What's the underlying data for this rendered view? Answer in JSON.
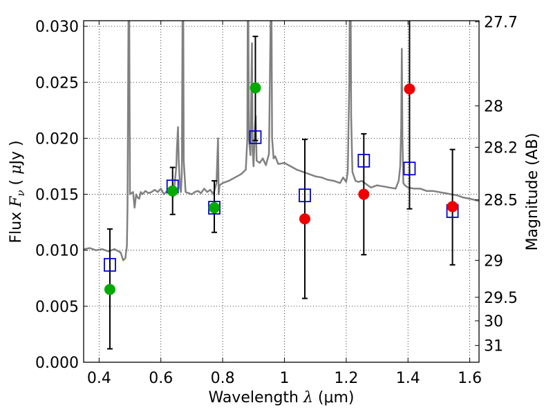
{
  "chart_data": {
    "type": "scatter",
    "xlabel": "Wavelength  λ (μm)",
    "xlabel_parts": {
      "pre": "Wavelength  ",
      "sym": "λ",
      "post": " (μm)"
    },
    "ylabel": "Flux  Fν  ( μJy )",
    "ylabel_parts": {
      "pre": "Flux  ",
      "sym": "F",
      "sub": "ν",
      "mid": "  ( ",
      "mu": "μ",
      "post": "Jy )"
    },
    "y2label": "Magnitude (AB)",
    "xlim": [
      0.35,
      1.63
    ],
    "ylim": [
      0.0,
      0.0305
    ],
    "grid": true,
    "xticks": [
      0.4,
      0.6,
      0.8,
      1.0,
      1.2,
      1.4,
      1.6
    ],
    "xtick_labels": [
      "0.4",
      "0.6",
      "0.8",
      "1",
      "1.2",
      "1.4",
      "1.6"
    ],
    "yticks": [
      0.0,
      0.005,
      0.01,
      0.015,
      0.02,
      0.025,
      0.03
    ],
    "ytick_labels": [
      "0.000",
      "0.005",
      "0.010",
      "0.015",
      "0.020",
      "0.025",
      "0.030"
    ],
    "y2ticks": [
      {
        "label": "27.7",
        "flux": 0.0304
      },
      {
        "label": "28",
        "flux": 0.0229
      },
      {
        "label": "28.2",
        "flux": 0.0192
      },
      {
        "label": "28.5",
        "flux": 0.0145
      },
      {
        "label": "29",
        "flux": 0.0091
      },
      {
        "label": "29.5",
        "flux": 0.0058
      },
      {
        "label": "30",
        "flux": 0.0037
      },
      {
        "label": "31",
        "flux": 0.0015
      }
    ],
    "spectrum": {
      "color": "#808080",
      "points": [
        [
          0.35,
          0.0101
        ],
        [
          0.37,
          0.0102
        ],
        [
          0.39,
          0.01
        ],
        [
          0.41,
          0.0101
        ],
        [
          0.43,
          0.0099
        ],
        [
          0.45,
          0.0101
        ],
        [
          0.47,
          0.0098
        ],
        [
          0.478,
          0.0091
        ],
        [
          0.485,
          0.0093
        ],
        [
          0.49,
          0.0104
        ],
        [
          0.492,
          0.014
        ],
        [
          0.495,
          0.03
        ],
        [
          0.4965,
          0.04
        ],
        [
          0.498,
          0.029
        ],
        [
          0.5,
          0.015
        ],
        [
          0.505,
          0.0151
        ],
        [
          0.51,
          0.0152
        ],
        [
          0.515,
          0.0138
        ],
        [
          0.52,
          0.015
        ],
        [
          0.525,
          0.0147
        ],
        [
          0.53,
          0.0146
        ],
        [
          0.535,
          0.0152
        ],
        [
          0.54,
          0.015
        ],
        [
          0.55,
          0.0153
        ],
        [
          0.56,
          0.0151
        ],
        [
          0.57,
          0.0152
        ],
        [
          0.58,
          0.0154
        ],
        [
          0.59,
          0.0152
        ],
        [
          0.6,
          0.0155
        ],
        [
          0.61,
          0.015
        ],
        [
          0.62,
          0.0153
        ],
        [
          0.63,
          0.0152
        ],
        [
          0.64,
          0.0148
        ],
        [
          0.645,
          0.016
        ],
        [
          0.65,
          0.0175
        ],
        [
          0.652,
          0.0192
        ],
        [
          0.6555,
          0.021
        ],
        [
          0.658,
          0.018
        ],
        [
          0.662,
          0.0156
        ],
        [
          0.665,
          0.0152
        ],
        [
          0.668,
          0.017
        ],
        [
          0.6716,
          0.04
        ],
        [
          0.674,
          0.018
        ],
        [
          0.68,
          0.0152
        ],
        [
          0.69,
          0.0151
        ],
        [
          0.7,
          0.015
        ],
        [
          0.71,
          0.0152
        ],
        [
          0.72,
          0.0153
        ],
        [
          0.73,
          0.0151
        ],
        [
          0.74,
          0.0155
        ],
        [
          0.75,
          0.0152
        ],
        [
          0.76,
          0.0154
        ],
        [
          0.77,
          0.015
        ],
        [
          0.78,
          0.016
        ],
        [
          0.785,
          0.02
        ],
        [
          0.787,
          0.015
        ],
        [
          0.79,
          0.0158
        ],
        [
          0.8,
          0.016
        ],
        [
          0.82,
          0.0162
        ],
        [
          0.84,
          0.0165
        ],
        [
          0.86,
          0.0168
        ],
        [
          0.875,
          0.0172
        ],
        [
          0.88,
          0.02
        ],
        [
          0.882,
          0.038
        ],
        [
          0.885,
          0.02
        ],
        [
          0.89,
          0.0185
        ],
        [
          0.895,
          0.0285
        ],
        [
          0.897,
          0.019
        ],
        [
          0.9,
          0.0175
        ],
        [
          0.905,
          0.021
        ],
        [
          0.907,
          0.022
        ],
        [
          0.91,
          0.018
        ],
        [
          0.92,
          0.0178
        ],
        [
          0.93,
          0.0182
        ],
        [
          0.94,
          0.0176
        ],
        [
          0.95,
          0.0186
        ],
        [
          0.955,
          0.03
        ],
        [
          0.957,
          0.038
        ],
        [
          0.96,
          0.02
        ],
        [
          0.965,
          0.0182
        ],
        [
          0.97,
          0.0184
        ],
        [
          0.98,
          0.0177
        ],
        [
          1.0,
          0.0178
        ],
        [
          1.02,
          0.0175
        ],
        [
          1.04,
          0.0172
        ],
        [
          1.06,
          0.017
        ],
        [
          1.08,
          0.0168
        ],
        [
          1.1,
          0.0166
        ],
        [
          1.12,
          0.0165
        ],
        [
          1.14,
          0.0163
        ],
        [
          1.16,
          0.0162
        ],
        [
          1.18,
          0.016
        ],
        [
          1.19,
          0.0165
        ],
        [
          1.2,
          0.0161
        ],
        [
          1.205,
          0.017
        ],
        [
          1.21,
          0.025
        ],
        [
          1.213,
          0.04
        ],
        [
          1.216,
          0.022
        ],
        [
          1.22,
          0.017
        ],
        [
          1.23,
          0.0162
        ],
        [
          1.24,
          0.0161
        ],
        [
          1.25,
          0.0162
        ],
        [
          1.26,
          0.016
        ],
        [
          1.27,
          0.0158
        ],
        [
          1.28,
          0.0156
        ],
        [
          1.3,
          0.0158
        ],
        [
          1.32,
          0.0157
        ],
        [
          1.34,
          0.0156
        ],
        [
          1.36,
          0.0155
        ],
        [
          1.37,
          0.0162
        ],
        [
          1.375,
          0.0175
        ],
        [
          1.378,
          0.021
        ],
        [
          1.38,
          0.028
        ],
        [
          1.382,
          0.02
        ],
        [
          1.385,
          0.016
        ],
        [
          1.39,
          0.0158
        ],
        [
          1.4,
          0.0156
        ],
        [
          1.42,
          0.0155
        ],
        [
          1.44,
          0.0155
        ],
        [
          1.46,
          0.0153
        ],
        [
          1.48,
          0.0153
        ],
        [
          1.5,
          0.0152
        ],
        [
          1.52,
          0.0151
        ],
        [
          1.54,
          0.015
        ],
        [
          1.56,
          0.0149
        ],
        [
          1.58,
          0.0147
        ],
        [
          1.6,
          0.0146
        ],
        [
          1.63,
          0.0144
        ]
      ]
    },
    "model_boxes": {
      "color": "#0000cc",
      "x": [
        0.435,
        0.638,
        0.773,
        0.906,
        1.066,
        1.257,
        1.405,
        1.544
      ],
      "y": [
        0.0087,
        0.0157,
        0.0138,
        0.0201,
        0.0149,
        0.018,
        0.0173,
        0.0135
      ]
    },
    "measurements": {
      "x": [
        0.435,
        0.638,
        0.773,
        0.906,
        1.066,
        1.257,
        1.405,
        1.544
      ],
      "y": [
        0.0065,
        0.0153,
        0.0138,
        0.0245,
        0.0128,
        0.015,
        0.0244,
        0.0139
      ],
      "err_low": [
        0.0012,
        0.0132,
        0.0116,
        0.0198,
        0.0057,
        0.0096,
        0.0137,
        0.0087
      ],
      "err_high": [
        0.0119,
        0.0174,
        0.0162,
        0.0291,
        0.0199,
        0.0204,
        0.0306,
        0.019
      ],
      "colors": [
        "#00aa00",
        "#00aa00",
        "#00aa00",
        "#00aa00",
        "#ee0000",
        "#ee0000",
        "#ee0000",
        "#ee0000"
      ]
    }
  }
}
